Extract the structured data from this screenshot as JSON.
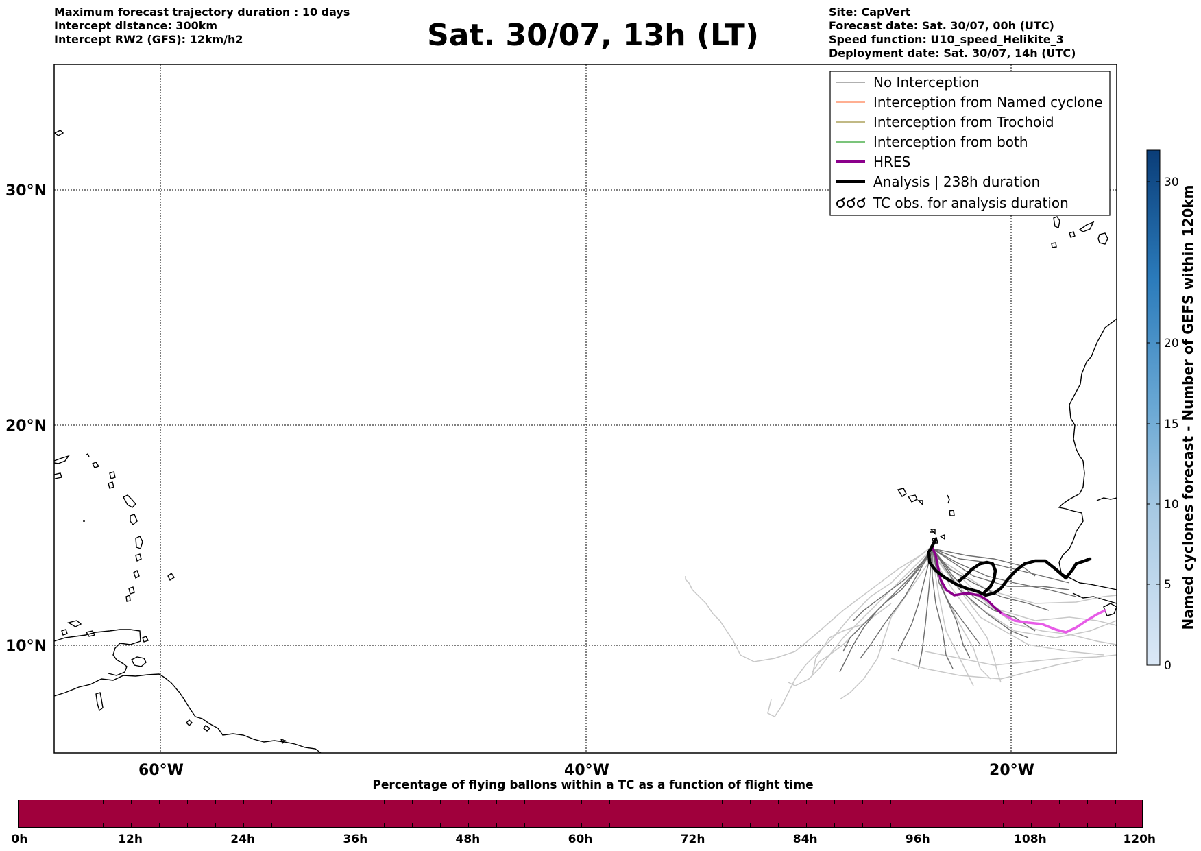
{
  "header_left": [
    "Maximum forecast trajectory duration : 10 days",
    "Intercept distance: 300km",
    "Intercept RW2 (GFS):  12km/h2"
  ],
  "title": "Sat. 30/07, 13h (LT)",
  "header_right": [
    "Site: CapVert",
    "Forecast date: Sat. 30/07, 00h (UTC)",
    "Speed function: U10_speed_Helikite_3",
    "Deployment date: Sat. 30/07, 14h (UTC)"
  ],
  "map": {
    "lat_labels": [
      "30°N",
      "20°N",
      "10°N"
    ],
    "lon_labels": [
      "60°W",
      "40°W",
      "20°W"
    ]
  },
  "legend": [
    {
      "label": "No Interception",
      "color": "#808080",
      "style": "thin"
    },
    {
      "label": "Interception from Named cyclone",
      "color": "#ff7f50",
      "style": "thin"
    },
    {
      "label": "Interception from Trochoid",
      "color": "#9c8f3c",
      "style": "thin"
    },
    {
      "label": "Interception from both",
      "color": "#2ca02c",
      "style": "thin"
    },
    {
      "label": "HRES",
      "color": "#8b008b",
      "style": "thick"
    },
    {
      "label": "Analysis | 238h duration",
      "color": "#000000",
      "style": "thick"
    },
    {
      "label": "TC obs. for analysis duration",
      "color": "#000000",
      "style": "symbol"
    }
  ],
  "right_colorbar": {
    "label": "Named cyclones forecast - Number of GEFS within 120km",
    "ticks": [
      "0",
      "5",
      "10",
      "15",
      "20",
      "30"
    ]
  },
  "bottom_colorbar": {
    "title": "Percentage of flying ballons within a TC as a function of flight time",
    "color": "#a0003c",
    "ticks": [
      "0h",
      "12h",
      "24h",
      "36h",
      "48h",
      "60h",
      "72h",
      "84h",
      "96h",
      "108h",
      "120h"
    ]
  }
}
